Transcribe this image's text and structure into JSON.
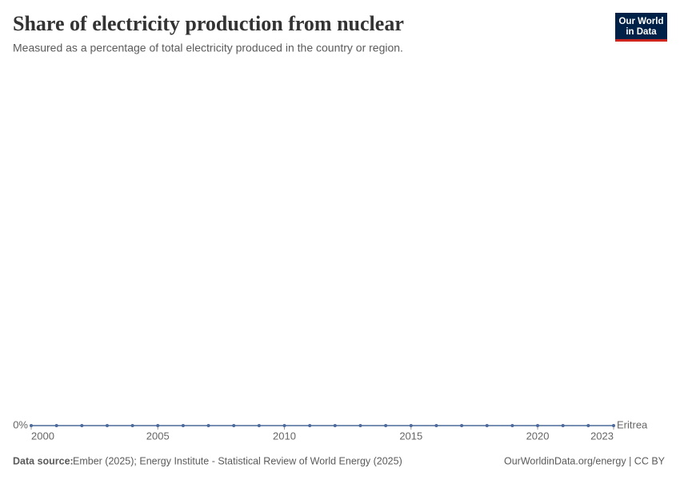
{
  "chart_data": {
    "type": "line",
    "title": "Share of electricity production from nuclear",
    "subtitle": "Measured as a percentage of total electricity produced in the country or region.",
    "x": [
      2000,
      2001,
      2002,
      2003,
      2004,
      2005,
      2006,
      2007,
      2008,
      2009,
      2010,
      2011,
      2012,
      2013,
      2014,
      2015,
      2016,
      2017,
      2018,
      2019,
      2020,
      2021,
      2022,
      2023
    ],
    "series": [
      {
        "name": "Eritrea",
        "color": "#4c6a9c",
        "values": [
          0,
          0,
          0,
          0,
          0,
          0,
          0,
          0,
          0,
          0,
          0,
          0,
          0,
          0,
          0,
          0,
          0,
          0,
          0,
          0,
          0,
          0,
          0,
          0
        ]
      }
    ],
    "xlim": [
      2000,
      2023
    ],
    "xticks": [
      2000,
      2005,
      2010,
      2015,
      2020,
      2023
    ],
    "ylim": [
      0,
      1
    ],
    "yticks": [
      {
        "value": 0,
        "label": "0%"
      }
    ],
    "grid": true
  },
  "logo": [
    "Our World",
    "in Data"
  ],
  "source_label": "Data source:",
  "source": "Ember (2025); Energy Institute - Statistical Review of World Energy (2025)",
  "footer_right": "OurWorldinData.org/energy | CC BY"
}
